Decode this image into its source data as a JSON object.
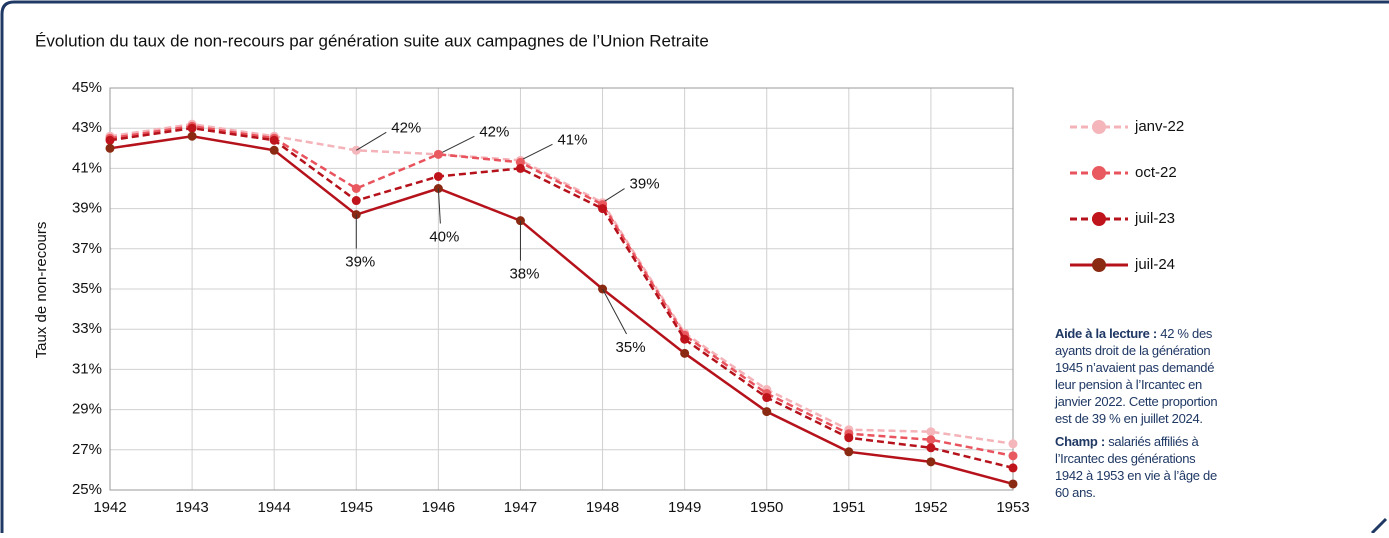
{
  "chart_data": {
    "type": "line",
    "title": "Évolution du taux de non-recours par génération suite aux campagnes de l’Union Retraite",
    "y_label": "Taux de non-recours",
    "categories": [
      "1942",
      "1943",
      "1944",
      "1945",
      "1946",
      "1947",
      "1948",
      "1949",
      "1950",
      "1951",
      "1952",
      "1953"
    ],
    "ylim": [
      25,
      45
    ],
    "yticks": [
      {
        "value": 25,
        "label": "25%"
      },
      {
        "value": 27,
        "label": "27%"
      },
      {
        "value": 29,
        "label": "29%"
      },
      {
        "value": 31,
        "label": "31%"
      },
      {
        "value": 33,
        "label": "33%"
      },
      {
        "value": 35,
        "label": "35%"
      },
      {
        "value": 37,
        "label": "37%"
      },
      {
        "value": 39,
        "label": "39%"
      },
      {
        "value": 41,
        "label": "41%"
      },
      {
        "value": 43,
        "label": "43%"
      },
      {
        "value": 45,
        "label": "45%"
      }
    ],
    "grid": true,
    "legend": "right",
    "series": [
      {
        "name": "janv-22",
        "color": "#f4b3b8",
        "marker_color": "#f4b6bb",
        "dashed": true,
        "values": [
          42.6,
          43.2,
          42.6,
          41.9,
          41.7,
          41.4,
          39.3,
          32.8,
          30.0,
          28.0,
          27.9,
          27.3
        ],
        "value_labels": [
          null,
          null,
          null,
          "42%",
          "42%",
          "41%",
          "39%",
          null,
          null,
          null,
          null,
          null
        ]
      },
      {
        "name": "oct-22",
        "color": "#e8535d",
        "marker_color": "#e85a5f",
        "dashed": true,
        "values": [
          42.5,
          43.1,
          42.5,
          40.0,
          41.7,
          41.3,
          39.2,
          32.7,
          29.8,
          27.8,
          27.5,
          26.7
        ]
      },
      {
        "name": "juil-23",
        "color": "#b5121b",
        "marker_color": "#c0141c",
        "dashed": true,
        "values": [
          42.4,
          43.0,
          42.4,
          39.4,
          40.6,
          41.0,
          39.0,
          32.5,
          29.6,
          27.6,
          27.1,
          26.1
        ]
      },
      {
        "name": "juil-24",
        "color": "#b5121b",
        "marker_color": "#8a2a12",
        "dashed": false,
        "values": [
          42.0,
          42.6,
          41.9,
          38.7,
          40.0,
          38.4,
          35.0,
          31.8,
          28.9,
          26.9,
          26.4,
          25.3
        ],
        "value_labels": [
          null,
          null,
          null,
          "39%",
          "40%",
          "38%",
          "35%",
          null,
          null,
          null,
          null,
          null
        ]
      }
    ],
    "notes": [
      {
        "title": "Aide à la lecture :",
        "text": "42 % des ayants droit de la génération 1945 n’avaient pas demandé leur pension à l’Ircantec en janvier 2022. Cette proportion est de 39 % en juillet 2024."
      },
      {
        "title": "Champ :",
        "text": "salariés affiliés à l’Ircantec des générations 1942 à 1953 en vie à l’âge de 60 ans."
      }
    ]
  }
}
